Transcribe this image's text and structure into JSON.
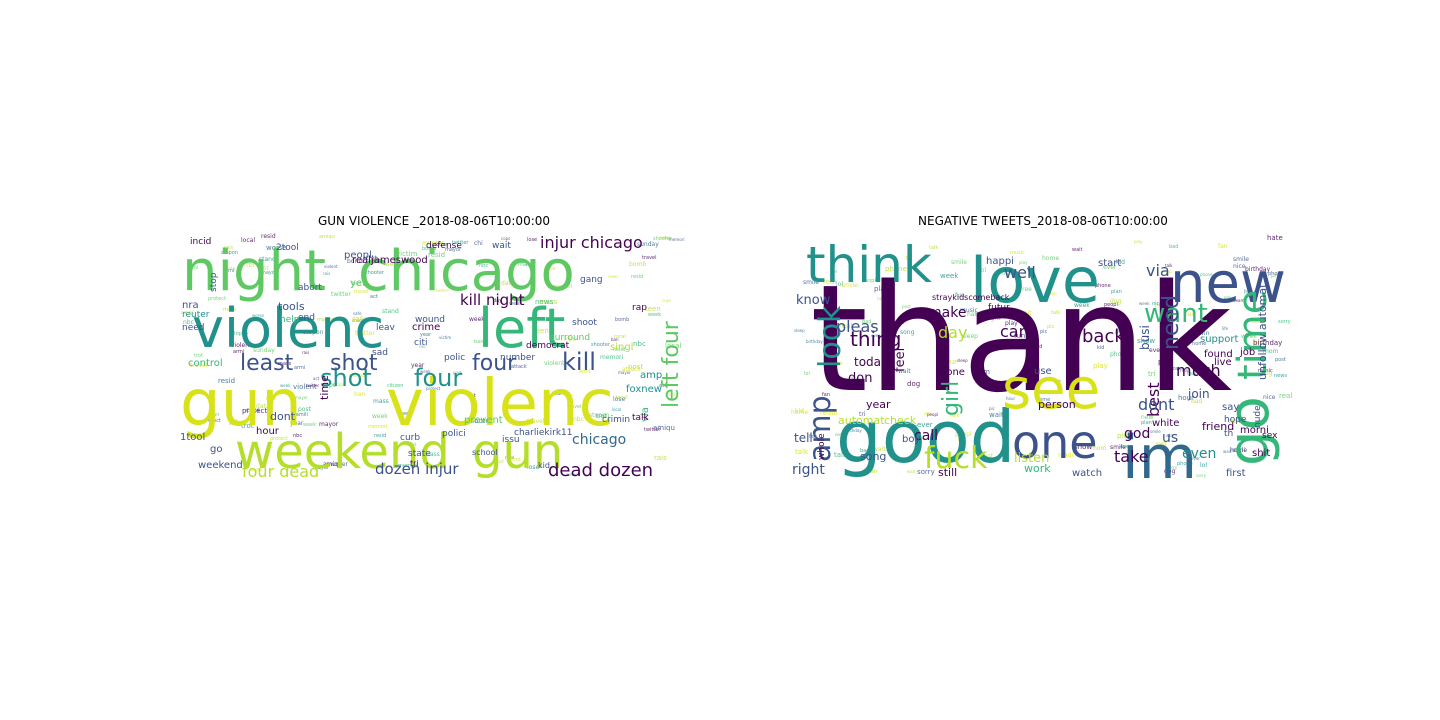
{
  "figure": {
    "titles": {
      "left": "GUN VIOLENCE _2018-08-06T10:00:00",
      "right": "NEGATIVE TWEETS_2018-08-06T10:00:00"
    }
  },
  "palette": {
    "dark_purple": "#440154",
    "indigo": "#3b528b",
    "blue": "#31688e",
    "teal": "#21918c",
    "green_teal": "#2a9d8a",
    "green": "#35b779",
    "light_green": "#5ec962",
    "yellow_green": "#b5de2b",
    "yellow": "#d7e219"
  },
  "clouds": {
    "left": {
      "words": [
        {
          "text": "night",
          "color": "#5ec962"
        },
        {
          "text": "chicago",
          "color": "#5ec962"
        },
        {
          "text": "violenc",
          "color": "#21918c"
        },
        {
          "text": "left",
          "color": "#35b779"
        },
        {
          "text": "gun",
          "color": "#d7e219"
        },
        {
          "text": "violenc",
          "color": "#d7e219"
        },
        {
          "text": "weekend",
          "color": "#b5de2b"
        },
        {
          "text": "gun",
          "color": "#b5de2b"
        },
        {
          "text": "shot",
          "color": "#21918c"
        },
        {
          "text": "four",
          "color": "#21918c"
        },
        {
          "text": "least",
          "color": "#3b528b"
        },
        {
          "text": "shot",
          "color": "#3b528b"
        },
        {
          "text": "four",
          "color": "#3b528b"
        },
        {
          "text": "kill",
          "color": "#3b528b"
        },
        {
          "text": "kill night",
          "color": "#440154"
        },
        {
          "text": "injur chicago",
          "color": "#440154"
        },
        {
          "text": "left four",
          "color": "#5ec962"
        },
        {
          "text": "dead dozen",
          "color": "#440154"
        },
        {
          "text": "four dead",
          "color": "#b5de2b"
        },
        {
          "text": "dozen injur",
          "color": "#3b528b"
        },
        {
          "text": "chicago",
          "color": "#31688e"
        },
        {
          "text": "realjameswood",
          "color": "#440154"
        },
        {
          "text": "control",
          "color": "#35b779"
        },
        {
          "text": "foxnew",
          "color": "#21918c"
        },
        {
          "text": "via",
          "color": "#35b779"
        },
        {
          "text": "time",
          "color": "#440154"
        },
        {
          "text": "incid",
          "color": "#440154"
        },
        {
          "text": "2tool",
          "color": "#3b528b"
        },
        {
          "text": "nra",
          "color": "#3b528b"
        },
        {
          "text": "reuter",
          "color": "#21918c"
        },
        {
          "text": "peopl",
          "color": "#3b528b"
        },
        {
          "text": "defense",
          "color": "#440154"
        },
        {
          "text": "wait",
          "color": "#3b528b"
        },
        {
          "text": "gang",
          "color": "#3b528b"
        },
        {
          "text": "yet",
          "color": "#5ec962"
        },
        {
          "text": "crime",
          "color": "#440154"
        },
        {
          "text": "wound",
          "color": "#3b528b"
        },
        {
          "text": "shoot",
          "color": "#3b528b"
        },
        {
          "text": "sad",
          "color": "#3b528b"
        },
        {
          "text": "polic",
          "color": "#3b528b"
        },
        {
          "text": "number",
          "color": "#3b528b"
        },
        {
          "text": "dont",
          "color": "#3b528b"
        },
        {
          "text": "hour",
          "color": "#440154"
        },
        {
          "text": "curb",
          "color": "#3b528b"
        },
        {
          "text": "prevent",
          "color": "#5ec962"
        },
        {
          "text": "polici",
          "color": "#3b528b"
        },
        {
          "text": "issu",
          "color": "#3b528b"
        },
        {
          "text": "charliekirk11",
          "color": "#3b528b"
        },
        {
          "text": "crimin",
          "color": "#3b528b"
        },
        {
          "text": "1tool",
          "color": "#3b528b"
        },
        {
          "text": "go",
          "color": "#3b528b"
        },
        {
          "text": "weekend",
          "color": "#3b528b"
        },
        {
          "text": "talk",
          "color": "#440154"
        },
        {
          "text": "rap",
          "color": "#440154"
        },
        {
          "text": "amp",
          "color": "#21918c"
        },
        {
          "text": "state",
          "color": "#3b528b"
        },
        {
          "text": "citi",
          "color": "#3b528b"
        },
        {
          "text": "democrat",
          "color": "#440154"
        },
        {
          "text": "tools",
          "color": "#3b528b"
        },
        {
          "text": "end",
          "color": "#3b528b"
        },
        {
          "text": "help",
          "color": "#35b779"
        },
        {
          "text": "need",
          "color": "#3b528b"
        },
        {
          "text": "stop",
          "color": "#3b528b"
        },
        {
          "text": "abort",
          "color": "#3b528b"
        },
        {
          "text": "leav",
          "color": "#3b528b"
        },
        {
          "text": "surround",
          "color": "#5ec962"
        },
        {
          "text": "singl",
          "color": "#b5de2b"
        },
        {
          "text": "tri",
          "color": "#440154"
        },
        {
          "text": "kid",
          "color": "#3b528b"
        },
        {
          "text": "school",
          "color": "#3b528b"
        }
      ]
    },
    "right": {
      "words": [
        {
          "text": "thank",
          "color": "#440154"
        },
        {
          "text": "think",
          "color": "#21918c"
        },
        {
          "text": "love",
          "color": "#21918c"
        },
        {
          "text": "new",
          "color": "#3b528b"
        },
        {
          "text": "good",
          "color": "#21918c"
        },
        {
          "text": "see",
          "color": "#d7e219"
        },
        {
          "text": "im",
          "color": "#31688e"
        },
        {
          "text": "one",
          "color": "#3b528b"
        },
        {
          "text": "go",
          "color": "#35b779"
        },
        {
          "text": "time",
          "color": "#35b779"
        },
        {
          "text": "fuck",
          "color": "#b5de2b"
        },
        {
          "text": "amp",
          "color": "#3b528b"
        },
        {
          "text": "look",
          "color": "#21918c"
        },
        {
          "text": "want",
          "color": "#35b779"
        },
        {
          "text": "need",
          "color": "#3b528b"
        },
        {
          "text": "girl",
          "color": "#35b779"
        },
        {
          "text": "thing",
          "color": "#440154"
        },
        {
          "text": "pleas",
          "color": "#3b528b"
        },
        {
          "text": "well",
          "color": "#3b528b"
        },
        {
          "text": "via",
          "color": "#3b528b"
        },
        {
          "text": "make",
          "color": "#440154"
        },
        {
          "text": "day",
          "color": "#b5de2b"
        },
        {
          "text": "cant",
          "color": "#440154"
        },
        {
          "text": "back",
          "color": "#440154"
        },
        {
          "text": "busi",
          "color": "#3b528b"
        },
        {
          "text": "much",
          "color": "#440154"
        },
        {
          "text": "best",
          "color": "#440154"
        },
        {
          "text": "dont",
          "color": "#3b528b"
        },
        {
          "text": "god",
          "color": "#440154"
        },
        {
          "text": "know",
          "color": "#3b528b"
        },
        {
          "text": "today",
          "color": "#440154"
        },
        {
          "text": "feel",
          "color": "#440154"
        },
        {
          "text": "don",
          "color": "#440154"
        },
        {
          "text": "never",
          "color": "#440154"
        },
        {
          "text": "right",
          "color": "#3b528b"
        },
        {
          "text": "call",
          "color": "#440154"
        },
        {
          "text": "listen",
          "color": "#b5de2b"
        },
        {
          "text": "take",
          "color": "#440154"
        },
        {
          "text": "even",
          "color": "#21918c"
        },
        {
          "text": "us",
          "color": "#3b528b"
        },
        {
          "text": "white",
          "color": "#440154"
        },
        {
          "text": "automat",
          "color": "#b5de2b"
        },
        {
          "text": "check",
          "color": "#b5de2b"
        },
        {
          "text": "unfollow automat",
          "color": "#3b528b"
        },
        {
          "text": "join",
          "color": "#3b528b"
        },
        {
          "text": "friend",
          "color": "#440154"
        },
        {
          "text": "support",
          "color": "#21918c"
        },
        {
          "text": "happi",
          "color": "#3b528b"
        },
        {
          "text": "tell",
          "color": "#3b528b"
        },
        {
          "text": "song",
          "color": "#3b528b"
        },
        {
          "text": "still",
          "color": "#440154"
        },
        {
          "text": "work",
          "color": "#35b779"
        },
        {
          "text": "watch",
          "color": "#3b528b"
        },
        {
          "text": "morni",
          "color": "#440154"
        },
        {
          "text": "shit",
          "color": "#440154"
        },
        {
          "text": "sex",
          "color": "#440154"
        },
        {
          "text": "nude",
          "color": "#3b528b"
        },
        {
          "text": "first",
          "color": "#3b528b"
        },
        {
          "text": "say",
          "color": "#3b528b"
        },
        {
          "text": "hope",
          "color": "#3b528b"
        },
        {
          "text": "th",
          "color": "#3b528b"
        },
        {
          "text": "year",
          "color": "#440154"
        },
        {
          "text": "boy",
          "color": "#3b528b"
        },
        {
          "text": "done",
          "color": "#440154"
        },
        {
          "text": "job",
          "color": "#440154"
        },
        {
          "text": "live",
          "color": "#440154"
        },
        {
          "text": "found",
          "color": "#440154"
        },
        {
          "text": "use",
          "color": "#3b528b"
        },
        {
          "text": "person",
          "color": "#440154"
        },
        {
          "text": "start",
          "color": "#3b528b"
        },
        {
          "text": "whole",
          "color": "#440154"
        },
        {
          "text": "straykidscomeback",
          "color": "#440154"
        },
        {
          "text": "futur",
          "color": "#440154"
        },
        {
          "text": "meet",
          "color": "#440154"
        }
      ]
    }
  }
}
